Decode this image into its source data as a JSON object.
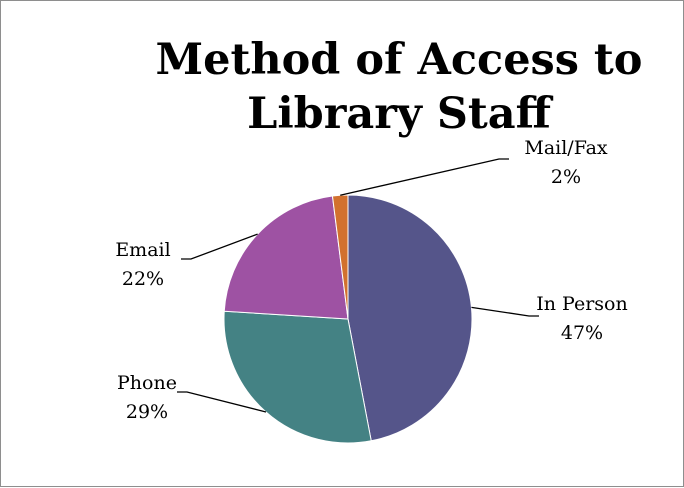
{
  "chart_data": {
    "type": "pie",
    "title_lines": [
      "Method of Access to",
      "Library Staff"
    ],
    "slices": [
      {
        "name": "In Person",
        "value": 47,
        "percent_label": "47%",
        "color": "#55558A"
      },
      {
        "name": "Phone",
        "value": 29,
        "percent_label": "29%",
        "color": "#448284"
      },
      {
        "name": "Email",
        "value": 22,
        "percent_label": "22%",
        "color": "#9E52A3"
      },
      {
        "name": "Mail/Fax",
        "value": 2,
        "percent_label": "2%",
        "color": "#D2712E"
      }
    ],
    "legend": "none",
    "data_labels": "outside-with-leader-lines"
  }
}
